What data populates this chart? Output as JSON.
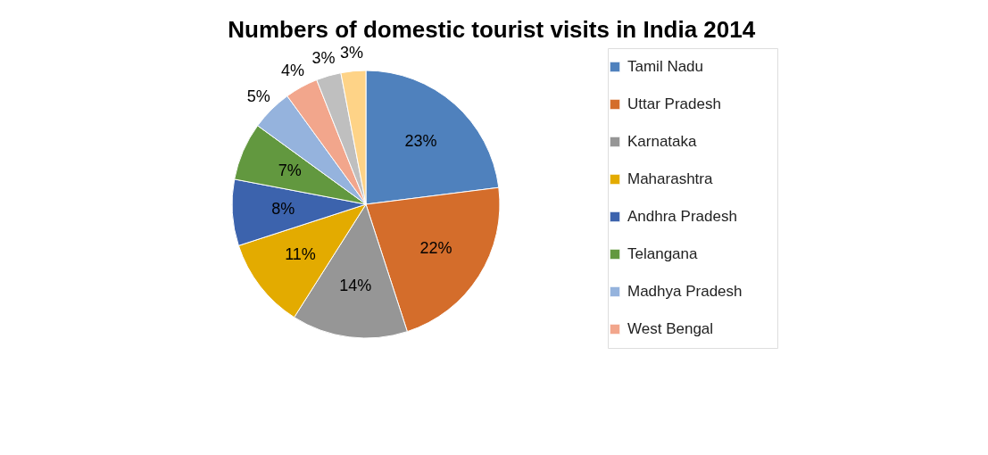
{
  "chart_data": {
    "type": "pie",
    "title": "Numbers of domestic tourist visits in India 2014",
    "categories": [
      "Tamil Nadu",
      "Uttar Pradesh",
      "Karnataka",
      "Maharashtra",
      "Andhra Pradesh",
      "Telangana",
      "Madhya Pradesh",
      "West Bengal",
      null,
      null
    ],
    "values": [
      23,
      22,
      14,
      11,
      8,
      7,
      5,
      4,
      3,
      3
    ],
    "value_labels": [
      "23%",
      "22%",
      "14%",
      "11%",
      "8%",
      "7%",
      "5%",
      "4%",
      "3%",
      "3%"
    ],
    "colors": [
      "#4f81bd",
      "#d46d2b",
      "#969696",
      "#e3ab00",
      "#3c63ad",
      "#62983f",
      "#95b3dd",
      "#f2a68c",
      "#bfbfbf",
      "#fed387"
    ],
    "legend": "right"
  }
}
